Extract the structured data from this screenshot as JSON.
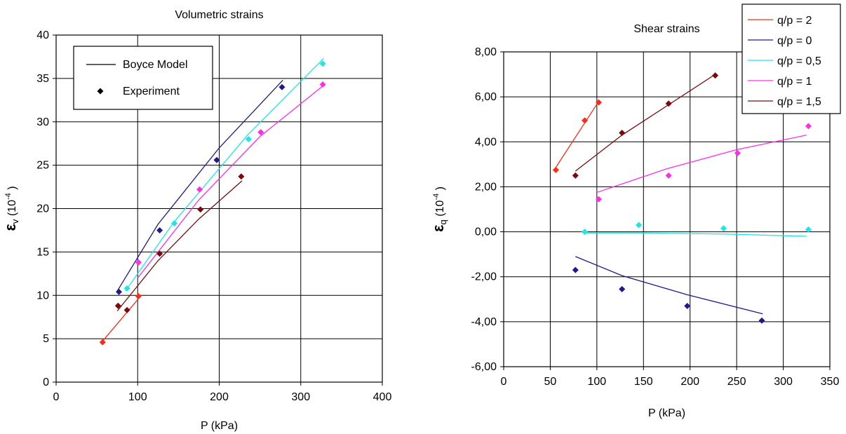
{
  "chart_data": [
    {
      "type": "line",
      "title": "Volumetric strains",
      "xlabel": "P (kPa)",
      "ylabel_symbol": "ε",
      "ylabel_sub": "v",
      "ylabel_unit": "(10",
      "ylabel_exp": "-4",
      "ylabel_close": ")",
      "xlim": [
        0,
        400
      ],
      "ylim": [
        0,
        40
      ],
      "xticks": [
        "0",
        "100",
        "200",
        "300",
        "400"
      ],
      "yticks": [
        "0",
        "5",
        "10",
        "15",
        "20",
        "25",
        "30",
        "35",
        "40"
      ],
      "grid": true,
      "legend": {
        "position": "top-left",
        "items": [
          "Boyce Model",
          "Experiment"
        ]
      },
      "series": [
        {
          "color": "#ff2a14",
          "model": [
            [
              55,
              4.5
            ],
            [
              100,
              9.5
            ]
          ],
          "experiment": [
            [
              57,
              4.6
            ],
            [
              101,
              9.9
            ]
          ]
        },
        {
          "color": "#1d1a8a",
          "model": [
            [
              75,
              10.5
            ],
            [
              125,
              18.2
            ],
            [
              200,
              27.0
            ],
            [
              278,
              34.8
            ]
          ],
          "experiment": [
            [
              77,
              10.4
            ],
            [
              127,
              17.5
            ],
            [
              197,
              25.6
            ],
            [
              277,
              34.0
            ]
          ]
        },
        {
          "color": "#1ee6e6",
          "model": [
            [
              85,
              10.5
            ],
            [
              145,
              18.5
            ],
            [
              235,
              28.5
            ],
            [
              328,
              37.3
            ]
          ],
          "experiment": [
            [
              87,
              10.8
            ],
            [
              145,
              18.3
            ],
            [
              236,
              28.0
            ],
            [
              327,
              36.7
            ]
          ]
        },
        {
          "color": "#ff2ee6",
          "model": [
            [
              100,
              12.0
            ],
            [
              175,
              21.0
            ],
            [
              250,
              28.3
            ],
            [
              328,
              34.2
            ]
          ],
          "experiment": [
            [
              101,
              13.8
            ],
            [
              176,
              22.2
            ],
            [
              251,
              28.8
            ],
            [
              327,
              34.3
            ]
          ]
        },
        {
          "color": "#7a0a0a",
          "model": [
            [
              75,
              8.2
            ],
            [
              125,
              14.0
            ],
            [
              175,
              18.8
            ],
            [
              228,
              23.2
            ]
          ],
          "experiment": [
            [
              76,
              8.8
            ],
            [
              87,
              8.3
            ],
            [
              127,
              14.8
            ],
            [
              177,
              19.9
            ],
            [
              227,
              23.7
            ]
          ]
        }
      ]
    },
    {
      "type": "line",
      "title": "Shear strains",
      "xlabel": "P (kPa)",
      "ylabel_symbol": "ε",
      "ylabel_sub": "q",
      "ylabel_unit": "(10",
      "ylabel_exp": "-4",
      "ylabel_close": ")",
      "xlim": [
        0,
        350
      ],
      "ylim": [
        -6,
        8
      ],
      "xticks": [
        "0",
        "50",
        "100",
        "150",
        "200",
        "250",
        "300",
        "350"
      ],
      "yticks": [
        "-6,00",
        "-4,00",
        "-2,00",
        "0,00",
        "2,00",
        "4,00",
        "6,00",
        "8,00"
      ],
      "grid": true,
      "legend": {
        "position": "top-right",
        "items": [
          "q/p = 2",
          "q/p = 0",
          "q/p = 0,5",
          "q/p =  1",
          "q/p = 1,5"
        ]
      },
      "series": [
        {
          "name": "q/p = 2",
          "color": "#ff2a14",
          "model": [
            [
              55,
              2.8
            ],
            [
              102,
              5.8
            ]
          ],
          "experiment": [
            [
              56,
              2.75
            ],
            [
              87,
              4.95
            ],
            [
              102,
              5.75
            ]
          ]
        },
        {
          "name": "q/p = 0",
          "color": "#1d1a8a",
          "model": [
            [
              77,
              -1.1
            ],
            [
              127,
              -1.95
            ],
            [
              197,
              -2.8
            ],
            [
              278,
              -3.65
            ]
          ],
          "experiment": [
            [
              77,
              -1.7
            ],
            [
              127,
              -2.55
            ],
            [
              197,
              -3.3
            ],
            [
              277,
              -3.95
            ]
          ]
        },
        {
          "name": "q/p = 0,5",
          "color": "#1ee6e6",
          "model": [
            [
              85,
              -0.05
            ],
            [
              145,
              -0.05
            ],
            [
              235,
              -0.1
            ],
            [
              325,
              -0.2
            ]
          ],
          "experiment": [
            [
              87,
              0.0
            ],
            [
              145,
              0.3
            ],
            [
              236,
              0.15
            ],
            [
              327,
              0.1
            ]
          ]
        },
        {
          "name": "q/p =  1",
          "color": "#ff2ee6",
          "model": [
            [
              100,
              1.75
            ],
            [
              175,
              2.8
            ],
            [
              250,
              3.65
            ],
            [
              325,
              4.3
            ]
          ],
          "experiment": [
            [
              102,
              1.45
            ],
            [
              177,
              2.5
            ],
            [
              251,
              3.5
            ],
            [
              327,
              4.7
            ]
          ]
        },
        {
          "name": "q/p = 1,5",
          "color": "#7a0a0a",
          "model": [
            [
              77,
              2.7
            ],
            [
              127,
              4.3
            ],
            [
              177,
              5.65
            ],
            [
              227,
              7.0
            ]
          ],
          "experiment": [
            [
              77,
              2.5
            ],
            [
              127,
              4.4
            ],
            [
              177,
              5.7
            ],
            [
              227,
              6.95
            ]
          ]
        }
      ]
    }
  ]
}
